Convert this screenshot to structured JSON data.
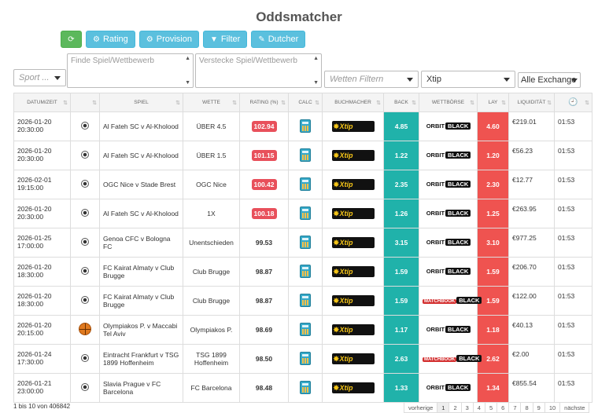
{
  "page_title": "Oddsmatcher",
  "toolbar": {
    "rating_label": "Rating",
    "provision_label": "Provision",
    "filter_label": "Filter",
    "dutcher_label": "Dutcher"
  },
  "filters": {
    "sport_placeholder": "Sport ...",
    "find_placeholder": "Finde Spiel/Wettbewerb",
    "hide_placeholder": "Verstecke Spiel/Wettbewerb",
    "bets_placeholder": "Wetten Filtern",
    "bookmaker_selected": "Xtip",
    "exchange_selected": "Alle Exchange"
  },
  "table": {
    "headers": {
      "datetime": "Datum/Zeit",
      "sport": "",
      "game": "Spiel",
      "bet": "Wette",
      "rating": "Rating (%)",
      "calc": "Calc",
      "bookmaker": "Buchmacher",
      "back": "Back",
      "exchange": "Wettbörse",
      "lay": "Lay",
      "liquidity": "Liquidität"
    },
    "rows": [
      {
        "date": "2026-01-20",
        "time": "20:30:00",
        "sport": "football",
        "game": "Al Fateh SC v Al-Kholood",
        "bet": "ÜBER 4.5",
        "rating": "102.94",
        "highlight": true,
        "bookmaker": "Xtip",
        "back": "4.85",
        "exchange_a": "ORBIT",
        "exchange_b": "BLACK",
        "exchange_type": "orbit",
        "lay": "4.60",
        "liquidity": "€219.01",
        "updated": "01:53"
      },
      {
        "date": "2026-01-20",
        "time": "20:30:00",
        "sport": "football",
        "game": "Al Fateh SC v Al-Kholood",
        "bet": "ÜBER 1.5",
        "rating": "101.15",
        "highlight": true,
        "bookmaker": "Xtip",
        "back": "1.22",
        "exchange_a": "ORBIT",
        "exchange_b": "BLACK",
        "exchange_type": "orbit",
        "lay": "1.20",
        "liquidity": "€56.23",
        "updated": "01:53"
      },
      {
        "date": "2026-02-01",
        "time": "19:15:00",
        "sport": "football",
        "game": "OGC Nice v Stade Brest",
        "bet": "OGC Nice",
        "rating": "100.42",
        "highlight": true,
        "bookmaker": "Xtip",
        "back": "2.35",
        "exchange_a": "ORBIT",
        "exchange_b": "BLACK",
        "exchange_type": "orbit",
        "lay": "2.30",
        "liquidity": "€12.77",
        "updated": "01:53"
      },
      {
        "date": "2026-01-20",
        "time": "20:30:00",
        "sport": "football",
        "game": "Al Fateh SC v Al-Kholood",
        "bet": "1X",
        "rating": "100.18",
        "highlight": true,
        "bookmaker": "Xtip",
        "back": "1.26",
        "exchange_a": "ORBIT",
        "exchange_b": "BLACK",
        "exchange_type": "orbit",
        "lay": "1.25",
        "liquidity": "€263.95",
        "updated": "01:53"
      },
      {
        "date": "2026-01-25",
        "time": "17:00:00",
        "sport": "football",
        "game": "Genoa CFC v Bologna FC",
        "bet": "Unentschieden",
        "rating": "99.53",
        "highlight": false,
        "bookmaker": "Xtip",
        "back": "3.15",
        "exchange_a": "ORBIT",
        "exchange_b": "BLACK",
        "exchange_type": "orbit",
        "lay": "3.10",
        "liquidity": "€977.25",
        "updated": "01:53"
      },
      {
        "date": "2026-01-20",
        "time": "18:30:00",
        "sport": "football",
        "game": "FC Kairat Almaty v Club Brugge",
        "bet": "Club Brugge",
        "rating": "98.87",
        "highlight": false,
        "bookmaker": "Xtip",
        "back": "1.59",
        "exchange_a": "ORBIT",
        "exchange_b": "BLACK",
        "exchange_type": "orbit",
        "lay": "1.59",
        "liquidity": "€206.70",
        "updated": "01:53"
      },
      {
        "date": "2026-01-20",
        "time": "18:30:00",
        "sport": "football",
        "game": "FC Kairat Almaty v Club Brugge",
        "bet": "Club Brugge",
        "rating": "98.87",
        "highlight": false,
        "bookmaker": "Xtip",
        "back": "1.59",
        "exchange_a": "MATCHBOOK",
        "exchange_b": "BLACK",
        "exchange_type": "mb",
        "lay": "1.59",
        "liquidity": "€122.00",
        "updated": "01:53"
      },
      {
        "date": "2026-01-20",
        "time": "20:15:00",
        "sport": "basketball",
        "game": "Olympiakos P. v Maccabi Tel Aviv",
        "bet": "Olympiakos P.",
        "rating": "98.69",
        "highlight": false,
        "bookmaker": "Xtip",
        "back": "1.17",
        "exchange_a": "ORBIT",
        "exchange_b": "BLACK",
        "exchange_type": "orbit",
        "lay": "1.18",
        "liquidity": "€40.13",
        "updated": "01:53"
      },
      {
        "date": "2026-01-24",
        "time": "17:30:00",
        "sport": "football",
        "game": "Eintracht Frankfurt v TSG 1899 Hoffenheim",
        "bet": "TSG 1899 Hoffenheim",
        "rating": "98.50",
        "highlight": false,
        "bookmaker": "Xtip",
        "back": "2.63",
        "exchange_a": "MATCHBOOK",
        "exchange_b": "BLACK",
        "exchange_type": "mb",
        "lay": "2.62",
        "liquidity": "€2.00",
        "updated": "01:53"
      },
      {
        "date": "2026-01-21",
        "time": "23:00:00",
        "sport": "football",
        "game": "Slavia Prague v FC Barcelona",
        "bet": "FC Barcelona",
        "rating": "98.48",
        "highlight": false,
        "bookmaker": "Xtip",
        "back": "1.33",
        "exchange_a": "ORBIT",
        "exchange_b": "BLACK",
        "exchange_type": "orbit",
        "lay": "1.34",
        "liquidity": "€855.54",
        "updated": "01:53"
      }
    ]
  },
  "footer": {
    "info": "1 bis 10 von 406842",
    "prev": "vorherige",
    "pages": [
      "1",
      "2",
      "3",
      "4",
      "5",
      "6",
      "7",
      "8",
      "9",
      "10"
    ],
    "next": "nächste"
  },
  "colors": {
    "back": "#20b2aa",
    "lay": "#ef5350",
    "rating_badge": "#e8505b",
    "accent_button": "#5bc0de",
    "refresh_button": "#5cb85c"
  }
}
